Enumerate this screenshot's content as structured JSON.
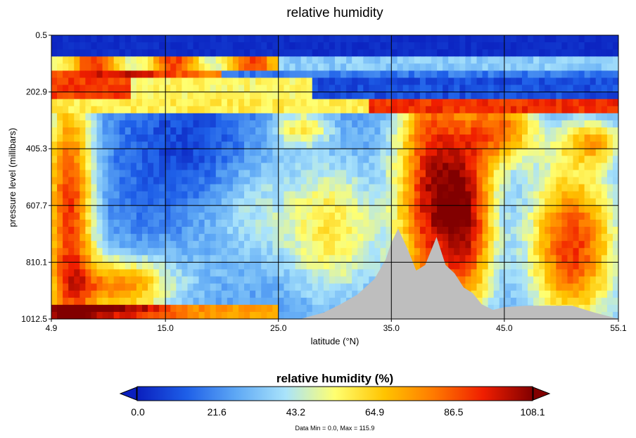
{
  "chart_data": {
    "type": "heatmap",
    "title": "relative humidity",
    "xlabel": "latitude (°N)",
    "ylabel": "pressure level (millibars)",
    "xlim": [
      4.9,
      55.1
    ],
    "ylim": [
      0.5,
      1012.5
    ],
    "y_inverted": true,
    "x_ticks": [
      "4.9",
      "15.0",
      "25.0",
      "35.0",
      "45.0",
      "55.1"
    ],
    "x_tick_values": [
      4.9,
      15.0,
      25.0,
      35.0,
      45.0,
      55.1
    ],
    "y_ticks": [
      "0.5",
      "202.9",
      "405.3",
      "607.7",
      "810.1",
      "1012.5"
    ],
    "y_tick_values": [
      0.5,
      202.9,
      405.3,
      607.7,
      810.1,
      1012.5
    ],
    "grid": true,
    "no_data_color": "#bebebe",
    "terrain_surface": {
      "description_values_lat": [
        25.0,
        27.0,
        29.0,
        30.5,
        32.0,
        33.5,
        34.5,
        35.0,
        35.6,
        36.4,
        37.2,
        38.0,
        39.0,
        39.8,
        40.6,
        41.4,
        42.2,
        43.0,
        44.0,
        45.0,
        47.0,
        49.0,
        51.0,
        53.0,
        55.1
      ],
      "pressure": [
        1012,
        1012,
        990,
        960,
        925,
        870,
        800,
        740,
        690,
        760,
        840,
        820,
        720,
        820,
        850,
        900,
        920,
        960,
        980,
        970,
        965,
        965,
        965,
        990,
        1012
      ]
    },
    "colorbar": {
      "title": "relative humidity (%)",
      "min": 0.0,
      "max": 108.1,
      "ticks": [
        "0.0",
        "21.6",
        "43.2",
        "64.9",
        "86.5",
        "108.1"
      ],
      "colors": [
        "#0a1fbe",
        "#1e5fe8",
        "#5ea8f5",
        "#a9e3fb",
        "#ffff70",
        "#ffc400",
        "#ff7a00",
        "#f01e00",
        "#820000"
      ],
      "data_min": 0.0,
      "data_max": 115.9
    }
  },
  "minmax_label": "Data Min = 0.0, Max = 115.9"
}
